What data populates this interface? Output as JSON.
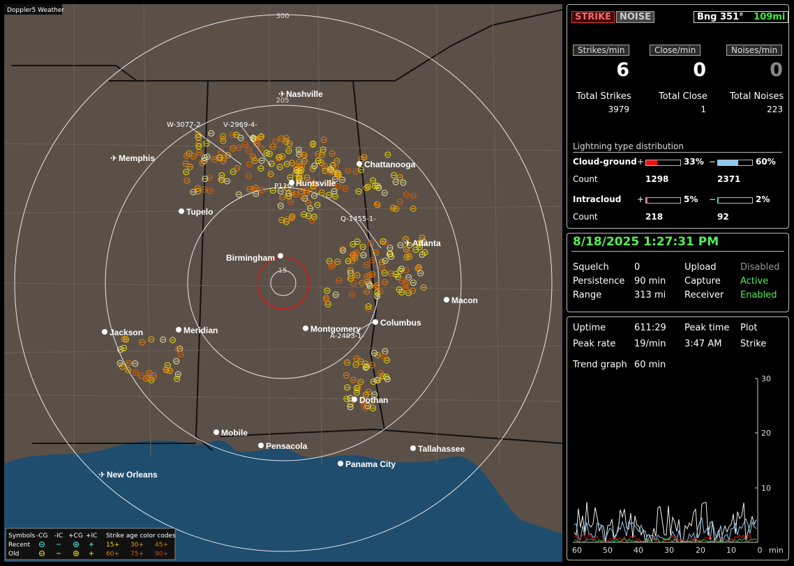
{
  "map": {
    "overlay_title": "Doppler5 Weather",
    "ring_labels": {
      "r300": "300",
      "r205": "205",
      "r15": "15"
    },
    "cities": {
      "nashville": "Nashville",
      "memphis": "Memphis",
      "chattanooga": "Chattanooga",
      "huntsville": "Huntsville",
      "tupelo": "Tupelo",
      "birmingham": "Birmingham",
      "atlanta": "Atlanta",
      "macon": "Macon",
      "jackson": "Jackson",
      "meridian": "Meridian",
      "montgomery": "Montgomery",
      "columbus": "Columbus",
      "dothan": "Dothan",
      "mobile": "Mobile",
      "pensacola": "Pensacola",
      "tallahassee": "Tallahassee",
      "panama_city": "Panama City",
      "new_orleans": "New Orleans"
    },
    "storm_labels": {
      "w": "W-3077-2-",
      "v": "V-2969-4-",
      "p": "P110-",
      "q": "Q-1455-1-",
      "a": "A-2403-1-"
    },
    "legend": {
      "symbols": "Symbols",
      "cg_minus": "-CG",
      "ic_minus": "-IC",
      "cg_plus": "+CG",
      "ic_plus": "+IC",
      "age_codes": "Strike age color codes",
      "recent": "Recent",
      "old": "Old",
      "age": [
        "15+",
        "30+",
        "45+",
        "60+",
        "75+",
        "90+"
      ]
    }
  },
  "header": {
    "strike_button": "STRIKE",
    "noise_button": "NOISE",
    "bearing": "Bng 351°",
    "distance": "109mi"
  },
  "rates": {
    "strikes_label": "Strikes/min",
    "close_label": "Close/min",
    "noises_label": "Noises/min",
    "strikes": "6",
    "close": "0",
    "noises": "0"
  },
  "totals": {
    "strikes_label": "Total Strikes",
    "close_label": "Total Close",
    "noises_label": "Total Noises",
    "strikes": "3979",
    "close": "1",
    "noises": "223"
  },
  "distribution": {
    "title": "Lightning type distribution",
    "cg_label": "Cloud-ground",
    "ic_label": "Intracloud",
    "count_label": "Count",
    "plus": "+",
    "minus": "−",
    "cg_pos_pct": "33%",
    "cg_neg_pct": "60%",
    "cg_pos_count": "1298",
    "cg_neg_count": "2371",
    "ic_pos_pct": "5%",
    "ic_neg_pct": "2%",
    "ic_pos_count": "218",
    "ic_neg_count": "92",
    "levels": {
      "cg_pos": 0.33,
      "cg_neg": 0.6,
      "ic_pos": 0.05,
      "ic_neg": 0.02
    },
    "colors": {
      "cg_pos": "#ee1111",
      "cg_neg": "#8ecbf2",
      "ic_pos": "#e65a8a",
      "ic_neg": "#22bb88"
    }
  },
  "status": {
    "datetime": "8/18/2025 1:27:31 PM",
    "squelch_label": "Squelch",
    "squelch": "0",
    "persistence_label": "Persistence",
    "persistence": "90 min",
    "range_label": "Range",
    "range": "313 mi",
    "upload_label": "Upload",
    "upload": "Disabled",
    "capture_label": "Capture",
    "capture": "Active",
    "receiver_label": "Receiver",
    "receiver": "Enabled"
  },
  "stats": {
    "uptime_label": "Uptime",
    "uptime": "611:29",
    "peak_time_label": "Peak time",
    "peak_time": "3:47 AM",
    "plot_label": "Plot",
    "plot": "Strike",
    "peak_rate_label": "Peak rate",
    "peak_rate": "19/min",
    "trend_label": "Trend graph",
    "trend": "60 min"
  },
  "trend": {
    "y_ticks": [
      "30",
      "20",
      "10"
    ],
    "x_ticks": [
      "60",
      "50",
      "40",
      "30",
      "20",
      "10",
      "0"
    ],
    "x_unit": "min"
  }
}
